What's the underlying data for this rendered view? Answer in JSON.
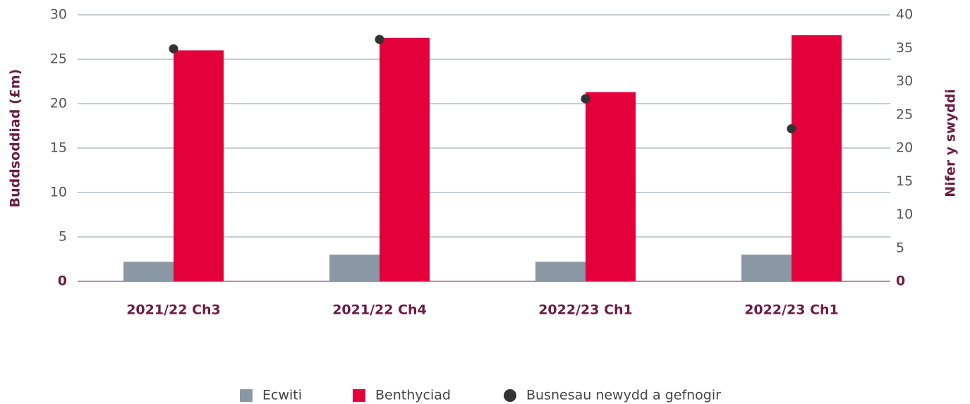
{
  "chart_data": {
    "type": "bar",
    "categories": [
      "2021/22 Ch3",
      "2021/22 Ch4",
      "2022/23 Ch1",
      "2022/23 Ch1"
    ],
    "series": [
      {
        "name": "Ecwiti",
        "color": "#8a98a6",
        "values": [
          2.2,
          3.0,
          2.2,
          3.0
        ]
      },
      {
        "name": "Benthyciad",
        "color": "#e4003b",
        "values": [
          26.0,
          27.4,
          21.3,
          27.7
        ]
      },
      {
        "name": "Busnesau newydd a gefnogir",
        "color": "#333333",
        "type": "scatter",
        "axis": "y2",
        "values": [
          34.9,
          36.3,
          27.4,
          22.9
        ]
      }
    ],
    "ylabel": "Buddsoddiad (£m)",
    "y2label": "Nifer y swyddi",
    "ylim": [
      0,
      30
    ],
    "yticks": [
      0,
      5,
      10,
      15,
      20,
      25,
      30
    ],
    "y2lim": [
      0,
      40
    ],
    "y2ticks": [
      0,
      5,
      10,
      15,
      20,
      25,
      30,
      35,
      40
    ],
    "grid": true,
    "legend": "bottom"
  }
}
